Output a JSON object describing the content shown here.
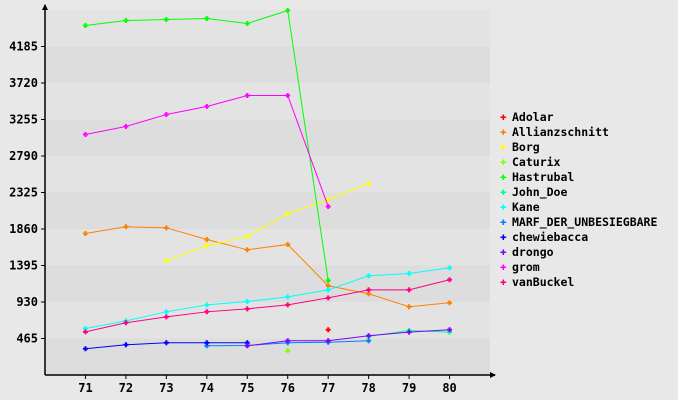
{
  "chart_data": {
    "type": "line",
    "title": "",
    "xlabel": "",
    "ylabel": "",
    "xlim": [
      70,
      81
    ],
    "ylim": [
      0,
      4650
    ],
    "x_ticks": [
      "71",
      "72",
      "73",
      "74",
      "75",
      "76",
      "77",
      "78",
      "79",
      "80"
    ],
    "y_ticks": [
      "465",
      "930",
      "1395",
      "1860",
      "2325",
      "2790",
      "3255",
      "3720",
      "4185"
    ],
    "grid": "alternating horizontal bands",
    "legend_position": "right",
    "series": [
      {
        "name": "Adolar",
        "color": "#ff0000",
        "points": [
          [
            77,
            577
          ]
        ]
      },
      {
        "name": "Allianzschnitt",
        "color": "#ff8000",
        "points": [
          [
            71,
            1803
          ],
          [
            72,
            1888
          ],
          [
            73,
            1875
          ],
          [
            74,
            1726
          ],
          [
            75,
            1595
          ],
          [
            76,
            1663
          ],
          [
            77,
            1137
          ],
          [
            78,
            1035
          ],
          [
            79,
            870
          ],
          [
            80,
            920
          ]
        ]
      },
      {
        "name": "Borg",
        "color": "#ffff00",
        "points": [
          [
            73,
            1455
          ],
          [
            74,
            1650
          ],
          [
            75,
            1764
          ],
          [
            76,
            2054
          ],
          [
            77,
            2236
          ],
          [
            78,
            2440
          ]
        ]
      },
      {
        "name": "Caturix",
        "color": "#80ff00",
        "points": [
          [
            76,
            309
          ]
        ]
      },
      {
        "name": "Hastrubal",
        "color": "#00ff00",
        "points": [
          [
            71,
            4453
          ],
          [
            72,
            4516
          ],
          [
            73,
            4529
          ],
          [
            74,
            4542
          ],
          [
            75,
            4478
          ],
          [
            76,
            4644
          ],
          [
            77,
            1204
          ]
        ]
      },
      {
        "name": "John_Doe",
        "color": "#00ff80",
        "points": [
          [
            78,
            490
          ],
          [
            79,
            567
          ],
          [
            80,
            546
          ]
        ]
      },
      {
        "name": "Kane",
        "color": "#00ffff",
        "points": [
          [
            71,
            592
          ],
          [
            72,
            690
          ],
          [
            73,
            805
          ],
          [
            74,
            894
          ],
          [
            75,
            936
          ],
          [
            76,
            996
          ],
          [
            77,
            1085
          ],
          [
            78,
            1264
          ],
          [
            79,
            1293
          ],
          [
            80,
            1366
          ]
        ]
      },
      {
        "name": "MARF_DER_UNBESIEGBARE",
        "color": "#0080ff",
        "points": [
          [
            74,
            372
          ],
          [
            75,
            376
          ],
          [
            76,
            411
          ],
          [
            77,
            418
          ],
          [
            78,
            436
          ]
        ]
      },
      {
        "name": "chewiebacca",
        "color": "#0000ff",
        "points": [
          [
            71,
            334
          ],
          [
            72,
            385
          ],
          [
            73,
            411
          ],
          [
            74,
            411
          ],
          [
            75,
            411
          ]
        ]
      },
      {
        "name": "drongo",
        "color": "#8000ff",
        "points": [
          [
            75,
            372
          ],
          [
            76,
            436
          ],
          [
            77,
            436
          ],
          [
            78,
            500
          ],
          [
            79,
            546
          ],
          [
            80,
            577
          ]
        ]
      },
      {
        "name": "grom",
        "color": "#ff00ff",
        "points": [
          [
            71,
            3064
          ],
          [
            72,
            3166
          ],
          [
            73,
            3319
          ],
          [
            74,
            3421
          ],
          [
            75,
            3561
          ],
          [
            76,
            3561
          ],
          [
            77,
            2147
          ]
        ]
      },
      {
        "name": "vanBuckel",
        "color": "#ff0080",
        "points": [
          [
            71,
            550
          ],
          [
            72,
            665
          ],
          [
            73,
            741
          ],
          [
            74,
            805
          ],
          [
            75,
            843
          ],
          [
            76,
            894
          ],
          [
            77,
            983
          ],
          [
            78,
            1085
          ],
          [
            79,
            1085
          ],
          [
            80,
            1213
          ]
        ]
      }
    ]
  }
}
